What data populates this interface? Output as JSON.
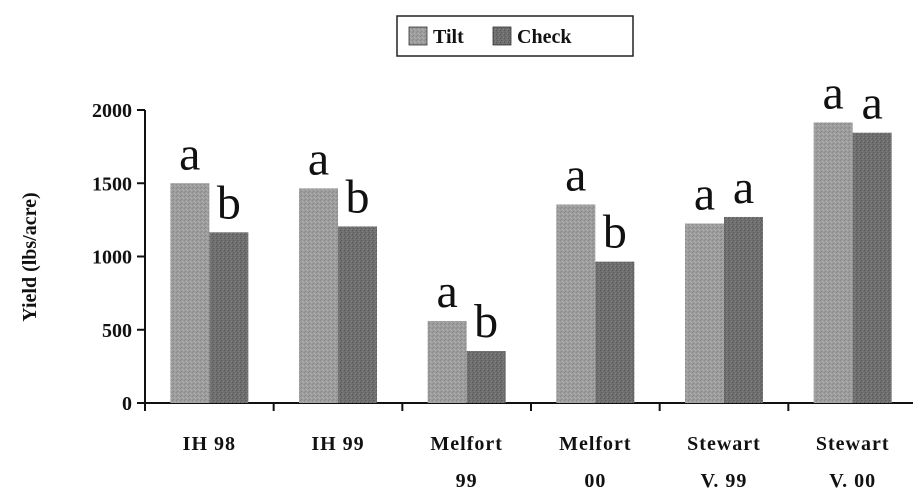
{
  "chart_data": {
    "type": "bar",
    "categories": [
      [
        "IH 98"
      ],
      [
        "IH 99"
      ],
      [
        "Melfort",
        "99"
      ],
      [
        "Melfort",
        "00"
      ],
      [
        "Stewart",
        "V. 99"
      ],
      [
        "Stewart",
        "V. 00"
      ]
    ],
    "series": [
      {
        "name": "Tilt",
        "values": [
          1500,
          1465,
          560,
          1355,
          1225,
          1915
        ],
        "letters": [
          "a",
          "a",
          "a",
          "a",
          "a",
          "a"
        ],
        "color": "#9a9a9a"
      },
      {
        "name": "Check",
        "values": [
          1165,
          1205,
          355,
          965,
          1270,
          1845
        ],
        "letters": [
          "b",
          "b",
          "b",
          "b",
          "a",
          "a"
        ],
        "color": "#6e6e6e"
      }
    ],
    "ylabel": "Yield (lbs/acre)",
    "ylim": [
      0,
      2000
    ],
    "yticks": [
      0,
      500,
      1000,
      1500,
      2000
    ],
    "legend_position": "top-center",
    "grid": false
  }
}
